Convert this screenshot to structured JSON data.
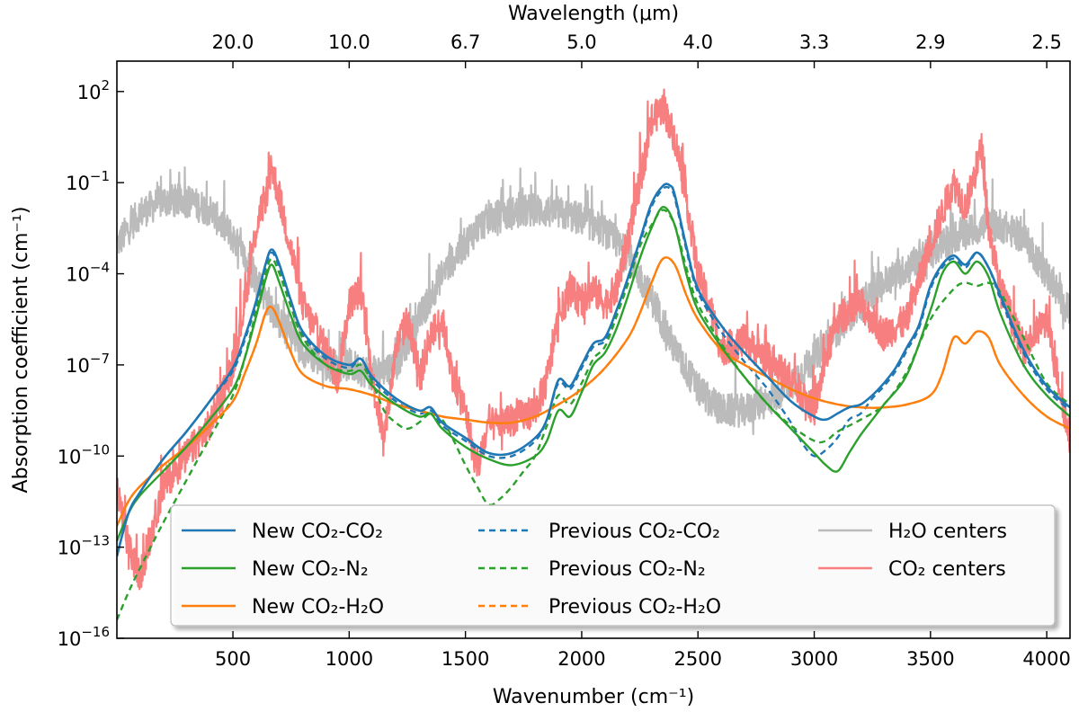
{
  "chart_data": {
    "type": "line",
    "title": "",
    "xlabel": "Wavenumber (cm⁻¹)",
    "ylabel": "Absorption coefficient (cm⁻¹)",
    "top_xlabel": "Wavelength (μm)",
    "xlim": [
      1,
      4100
    ],
    "ylim": [
      1e-16,
      1000
    ],
    "yscale": "log",
    "x_ticks": [
      500,
      1000,
      1500,
      2000,
      2500,
      3000,
      3500,
      4000
    ],
    "x_tick_labels": [
      "500",
      "1000",
      "1500",
      "2000",
      "2500",
      "3000",
      "3500",
      "4000"
    ],
    "y_ticks": [
      1e-16,
      1e-13,
      1e-10,
      1e-07,
      0.0001,
      0.1,
      100
    ],
    "y_tick_bases": [
      "10",
      "10",
      "10",
      "10",
      "10",
      "10",
      "10"
    ],
    "y_tick_exps": [
      "−16",
      "−13",
      "−10",
      "−7",
      "−4",
      "−1",
      "2"
    ],
    "top_ticks_wavenumber": [
      500,
      1000,
      1500,
      2000,
      2500,
      3000,
      3500,
      4000
    ],
    "top_tick_labels": [
      "20.0",
      "10.0",
      "6.7",
      "5.0",
      "4.0",
      "3.3",
      "2.9",
      "2.5"
    ],
    "grid": false,
    "legend_position": "bottom",
    "legend": [
      {
        "label": "New CO₂-CO₂",
        "color": "#1f77b4",
        "dash": "solid"
      },
      {
        "label": "New CO₂-N₂",
        "color": "#2ca02c",
        "dash": "solid"
      },
      {
        "label": "New CO₂-H₂O",
        "color": "#ff7f0e",
        "dash": "solid"
      },
      {
        "label": "Previous CO₂-CO₂",
        "color": "#1f77b4",
        "dash": "dashed"
      },
      {
        "label": "Previous CO₂-N₂",
        "color": "#2ca02c",
        "dash": "dashed"
      },
      {
        "label": "Previous CO₂-H₂O",
        "color": "#ff7f0e",
        "dash": "dashed"
      },
      {
        "label": "H₂O centers",
        "color": "#bbbbbb",
        "dash": "solid"
      },
      {
        "label": "CO₂ centers",
        "color": "#f77f7f",
        "dash": "solid"
      }
    ],
    "series": [
      {
        "key": "h2o_centers",
        "style": "noisy",
        "color": "#bbbbbb",
        "dash": "solid",
        "width": 2.2,
        "x": [
          5,
          100,
          200,
          300,
          400,
          500,
          600,
          700,
          800,
          900,
          1000,
          1100,
          1200,
          1300,
          1400,
          1500,
          1550,
          1600,
          1700,
          1800,
          1900,
          2000,
          2100,
          2200,
          2300,
          2400,
          2500,
          2600,
          2700,
          2800,
          2900,
          3000,
          3100,
          3200,
          3300,
          3400,
          3500,
          3600,
          3700,
          3800,
          3900,
          4000,
          4100
        ],
        "logy": [
          -3,
          -2,
          -1.6,
          -1.6,
          -1.9,
          -2.8,
          -4.2,
          -5.6,
          -6.5,
          -7,
          -7,
          -7.3,
          -7,
          -5.5,
          -4,
          -3,
          -2.5,
          -2.2,
          -2,
          -1.9,
          -2,
          -2.2,
          -2.6,
          -3.4,
          -4.8,
          -6.5,
          -7.8,
          -8.5,
          -8.5,
          -8.2,
          -7.6,
          -6.8,
          -5.8,
          -5,
          -4.3,
          -3.8,
          -3.3,
          -2.8,
          -2.5,
          -2.4,
          -2.8,
          -4,
          -5.3
        ]
      },
      {
        "key": "co2_centers",
        "style": "noisy",
        "color": "#f77f7f",
        "dash": "solid",
        "width": 2.2,
        "x": [
          1,
          50,
          100,
          150,
          200,
          300,
          400,
          500,
          550,
          600,
          650,
          667,
          700,
          750,
          800,
          850,
          900,
          950,
          1000,
          1050,
          1100,
          1150,
          1200,
          1250,
          1300,
          1350,
          1400,
          1450,
          1500,
          1550,
          1600,
          1700,
          1800,
          1850,
          1900,
          1950,
          2000,
          2050,
          2100,
          2150,
          2200,
          2250,
          2300,
          2350,
          2400,
          2450,
          2500,
          2550,
          2600,
          2700,
          2800,
          2900,
          3000,
          3050,
          3100,
          3200,
          3300,
          3400,
          3500,
          3550,
          3600,
          3650,
          3700,
          3720,
          3750,
          3800,
          3900,
          4000,
          4100
        ],
        "logy": [
          -11,
          -13,
          -14,
          -12.5,
          -11,
          -10,
          -9,
          -7,
          -5,
          -2.5,
          -1.2,
          -0.5,
          -1.5,
          -3.2,
          -5,
          -5.8,
          -6.5,
          -7.5,
          -5,
          -4.5,
          -7.5,
          -9.5,
          -6.5,
          -5.5,
          -7.5,
          -6,
          -5.5,
          -7.5,
          -8.5,
          -10.5,
          -9,
          -8.8,
          -8.5,
          -7.5,
          -5.5,
          -4.5,
          -5,
          -4.5,
          -5,
          -4.5,
          -2.8,
          -1,
          1,
          1.5,
          0.5,
          -1.5,
          -4,
          -5,
          -6.5,
          -6.2,
          -6.8,
          -7.5,
          -8.5,
          -6.8,
          -5.5,
          -5,
          -6,
          -5.5,
          -3,
          -2,
          -1,
          -1.8,
          -0.5,
          0.2,
          -2.5,
          -4.5,
          -6.5,
          -5.5,
          -9.5
        ]
      },
      {
        "key": "prev_co2_co2",
        "style": "smooth",
        "color": "#1f77b4",
        "dash": "dashed",
        "width": 2.4,
        "x": [
          1,
          50,
          100,
          200,
          300,
          400,
          500,
          550,
          600,
          640,
          667,
          700,
          750,
          800,
          900,
          1000,
          1050,
          1100,
          1200,
          1300,
          1350,
          1400,
          1500,
          1600,
          1700,
          1800,
          1850,
          1900,
          1950,
          2000,
          2050,
          2100,
          2150,
          2200,
          2250,
          2300,
          2350,
          2380,
          2400,
          2450,
          2500,
          2600,
          2700,
          2800,
          2900,
          2950,
          3000,
          3050,
          3100,
          3150,
          3200,
          3250,
          3300,
          3350,
          3400,
          3450,
          3500,
          3550,
          3600,
          3650,
          3700,
          3750,
          3800,
          3900,
          4000,
          4100
        ],
        "logy": [
          -13.3,
          -11.9,
          -11.2,
          -10.1,
          -9.2,
          -8.2,
          -7.2,
          -6.2,
          -5,
          -3.8,
          -3.3,
          -3.8,
          -5,
          -6,
          -6.8,
          -7.1,
          -6.8,
          -7.5,
          -8.2,
          -8.6,
          -8.5,
          -9,
          -9.5,
          -10,
          -10,
          -9.5,
          -8.8,
          -7.6,
          -7.8,
          -7.1,
          -6.4,
          -6.2,
          -5.3,
          -4.2,
          -3,
          -1.8,
          -1.2,
          -1.2,
          -1.5,
          -3.2,
          -4.6,
          -5.9,
          -6.9,
          -7.8,
          -8.9,
          -9.6,
          -10,
          -9.8,
          -9.4,
          -8.8,
          -8.6,
          -8.1,
          -7.7,
          -7.2,
          -6.5,
          -5.8,
          -4.5,
          -3.8,
          -3.5,
          -3.8,
          -3.3,
          -3.8,
          -4.8,
          -6.6,
          -7.8,
          -8.5
        ]
      },
      {
        "key": "prev_co2_n2",
        "style": "smooth",
        "color": "#2ca02c",
        "dash": "dashed",
        "width": 2.4,
        "x": [
          1,
          50,
          100,
          200,
          300,
          400,
          500,
          550,
          600,
          640,
          667,
          700,
          750,
          800,
          900,
          1000,
          1050,
          1100,
          1150,
          1200,
          1250,
          1300,
          1350,
          1400,
          1450,
          1500,
          1550,
          1600,
          1650,
          1700,
          1750,
          1800,
          1850,
          1900,
          1950,
          2000,
          2050,
          2100,
          2150,
          2200,
          2250,
          2300,
          2350,
          2400,
          2450,
          2500,
          2600,
          2700,
          2800,
          2900,
          3000,
          3050,
          3100,
          3200,
          3300,
          3400,
          3500,
          3600,
          3650,
          3700,
          3750,
          3800,
          3900,
          4000,
          4100
        ],
        "logy": [
          -15.4,
          -14.5,
          -13.7,
          -12.2,
          -10.8,
          -9.4,
          -8,
          -6.8,
          -5.2,
          -4,
          -3.5,
          -4,
          -5.1,
          -6.1,
          -7,
          -7.2,
          -7,
          -7.6,
          -8.5,
          -8.9,
          -9.1,
          -8.9,
          -8.6,
          -8.8,
          -9.5,
          -10.3,
          -11,
          -11.6,
          -11.4,
          -11,
          -10.5,
          -10,
          -9,
          -8,
          -8.3,
          -7.6,
          -6.8,
          -6.4,
          -5.4,
          -4.3,
          -3.1,
          -2.4,
          -1.9,
          -2.4,
          -3.8,
          -5,
          -6.3,
          -7.4,
          -8.3,
          -9,
          -9.5,
          -9.5,
          -9.2,
          -8.8,
          -8.3,
          -7.2,
          -5.5,
          -4.5,
          -4.3,
          -4.4,
          -4.3,
          -4.6,
          -6.1,
          -7.6,
          -8.3
        ]
      },
      {
        "key": "prev_co2_h2o",
        "style": "smooth",
        "color": "#ff7f0e",
        "dash": "dashed",
        "width": 2.4,
        "x": [
          1,
          50,
          100,
          200,
          300,
          400,
          500,
          550,
          600,
          640,
          667,
          700,
          750,
          800,
          900,
          1000,
          1100,
          1200,
          1300,
          1400,
          1500,
          1600,
          1700,
          1800,
          1900,
          2000,
          2100,
          2200,
          2250,
          2300,
          2350,
          2400,
          2450,
          2500,
          2600,
          2700,
          2800,
          2900,
          3000,
          3100,
          3200,
          3300,
          3400,
          3500,
          3550,
          3600,
          3650,
          3700,
          3750,
          3800,
          3900,
          4000,
          4100
        ],
        "logy": [
          -12.3,
          -11.5,
          -11,
          -10.3,
          -9.7,
          -9,
          -8.2,
          -7.3,
          -6.3,
          -5.3,
          -5.1,
          -5.6,
          -6.6,
          -7.3,
          -7.7,
          -7.8,
          -8,
          -8.3,
          -8.5,
          -8.7,
          -8.8,
          -8.9,
          -8.9,
          -8.7,
          -8.3,
          -7.8,
          -7.1,
          -6.1,
          -5.3,
          -4.3,
          -3.5,
          -3.7,
          -4.7,
          -5.5,
          -6.5,
          -7,
          -7.4,
          -7.8,
          -8.1,
          -8.3,
          -8.4,
          -8.4,
          -8.3,
          -8,
          -7.3,
          -6.1,
          -6.3,
          -5.9,
          -6.1,
          -7,
          -8,
          -8.7,
          -9.1
        ]
      },
      {
        "key": "new_co2_h2o",
        "style": "smooth",
        "color": "#ff7f0e",
        "dash": "solid",
        "width": 2.4,
        "x": [
          1,
          50,
          100,
          200,
          300,
          400,
          500,
          550,
          600,
          640,
          667,
          700,
          750,
          800,
          900,
          1000,
          1100,
          1200,
          1300,
          1400,
          1500,
          1600,
          1700,
          1800,
          1900,
          2000,
          2100,
          2200,
          2250,
          2300,
          2350,
          2400,
          2450,
          2500,
          2600,
          2700,
          2800,
          2900,
          3000,
          3100,
          3200,
          3300,
          3400,
          3500,
          3550,
          3600,
          3650,
          3700,
          3750,
          3800,
          3900,
          4000,
          4100
        ],
        "logy": [
          -12.3,
          -11.5,
          -11,
          -10.3,
          -9.7,
          -9,
          -8.2,
          -7.3,
          -6.3,
          -5.3,
          -5.1,
          -5.6,
          -6.6,
          -7.3,
          -7.7,
          -7.8,
          -8,
          -8.3,
          -8.5,
          -8.7,
          -8.8,
          -8.9,
          -8.9,
          -8.7,
          -8.3,
          -7.8,
          -7.1,
          -6.1,
          -5.3,
          -4.3,
          -3.5,
          -3.7,
          -4.7,
          -5.5,
          -6.5,
          -7,
          -7.4,
          -7.8,
          -8.1,
          -8.3,
          -8.4,
          -8.4,
          -8.3,
          -8,
          -7.3,
          -6.1,
          -6.3,
          -5.9,
          -6.1,
          -7,
          -8,
          -8.7,
          -9.1
        ]
      },
      {
        "key": "new_co2_n2",
        "style": "smooth",
        "color": "#2ca02c",
        "dash": "solid",
        "width": 2.4,
        "x": [
          1,
          50,
          100,
          200,
          300,
          400,
          500,
          550,
          600,
          640,
          667,
          700,
          750,
          800,
          900,
          1000,
          1050,
          1100,
          1200,
          1300,
          1350,
          1400,
          1500,
          1600,
          1700,
          1800,
          1850,
          1900,
          1950,
          2000,
          2050,
          2100,
          2150,
          2200,
          2250,
          2300,
          2350,
          2400,
          2450,
          2500,
          2600,
          2700,
          2800,
          2900,
          3000,
          3050,
          3100,
          3150,
          3200,
          3250,
          3300,
          3400,
          3500,
          3550,
          3600,
          3650,
          3700,
          3750,
          3800,
          3900,
          4000,
          4100
        ],
        "logy": [
          -12.8,
          -11.9,
          -11.3,
          -10.5,
          -9.7,
          -8.8,
          -7.8,
          -6.8,
          -5.4,
          -4.2,
          -3.7,
          -4.3,
          -5.4,
          -6.3,
          -7,
          -7.3,
          -7.2,
          -7.7,
          -8.3,
          -8.7,
          -8.6,
          -9.1,
          -9.7,
          -10.1,
          -10.3,
          -10,
          -9.5,
          -8.5,
          -8.7,
          -7.9,
          -7,
          -6.6,
          -5.8,
          -4.7,
          -3.5,
          -2.5,
          -1.8,
          -2.4,
          -4,
          -5.2,
          -6.4,
          -7.4,
          -8.3,
          -9.1,
          -9.9,
          -10.3,
          -10.5,
          -9.9,
          -9.3,
          -8.8,
          -8.3,
          -7.3,
          -5.2,
          -4,
          -3.6,
          -4,
          -3.6,
          -4.1,
          -5.3,
          -7,
          -8,
          -8.7
        ]
      },
      {
        "key": "new_co2_co2",
        "style": "smooth",
        "color": "#1f77b4",
        "dash": "solid",
        "width": 2.6,
        "x": [
          1,
          50,
          100,
          200,
          300,
          400,
          500,
          550,
          600,
          640,
          667,
          700,
          750,
          800,
          900,
          1000,
          1050,
          1100,
          1200,
          1300,
          1350,
          1400,
          1500,
          1600,
          1700,
          1800,
          1850,
          1900,
          1950,
          2000,
          2050,
          2100,
          2150,
          2200,
          2250,
          2300,
          2350,
          2380,
          2400,
          2450,
          2500,
          2600,
          2700,
          2800,
          2900,
          3000,
          3050,
          3100,
          3150,
          3200,
          3250,
          3300,
          3350,
          3400,
          3450,
          3500,
          3550,
          3600,
          3650,
          3700,
          3750,
          3800,
          3900,
          4000,
          4100
        ],
        "logy": [
          -13.3,
          -11.9,
          -11.2,
          -10.1,
          -9.2,
          -8.2,
          -7.1,
          -6.1,
          -4.9,
          -3.7,
          -3.2,
          -3.7,
          -4.9,
          -5.9,
          -6.7,
          -7,
          -6.8,
          -7.4,
          -8.1,
          -8.5,
          -8.4,
          -8.9,
          -9.4,
          -9.9,
          -9.9,
          -9.4,
          -8.8,
          -7.5,
          -7.7,
          -7,
          -6.3,
          -6.1,
          -5.2,
          -4.1,
          -2.9,
          -1.7,
          -1.1,
          -1.1,
          -1.4,
          -3.1,
          -4.5,
          -5.7,
          -6.6,
          -7.4,
          -8.2,
          -8.7,
          -8.8,
          -8.6,
          -8.4,
          -8.3,
          -8,
          -7.6,
          -7.1,
          -6.4,
          -5.7,
          -4.4,
          -3.7,
          -3.4,
          -3.7,
          -3.3,
          -3.8,
          -4.7,
          -6.5,
          -7.7,
          -8.4
        ]
      }
    ]
  }
}
